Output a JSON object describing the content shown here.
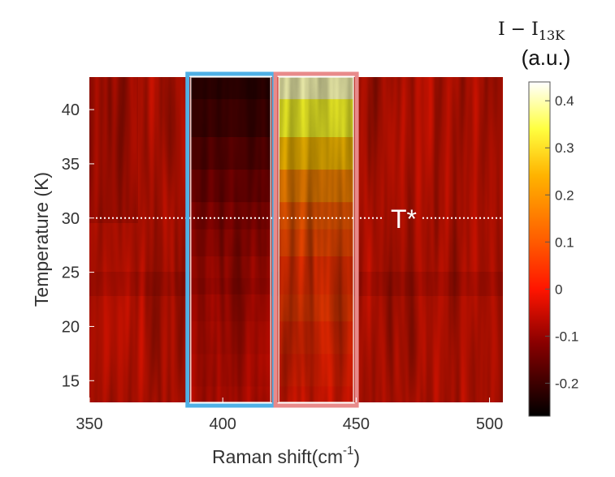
{
  "chart_data": {
    "type": "heatmap",
    "title": "",
    "xlabel": "Raman shift(cm",
    "xlabel_superscript": "-1",
    "xlabel_suffix": ")",
    "ylabel": "Temperature (K)",
    "xlim": [
      350,
      505
    ],
    "ylim": [
      13,
      43
    ],
    "x_ticks": [
      350,
      400,
      450,
      500
    ],
    "y_ticks": [
      15,
      20,
      25,
      30,
      35,
      40
    ],
    "colorbar": {
      "title_main": "I − I",
      "title_sub": "13K",
      "title_units": "(a.u.)",
      "range": [
        -0.27,
        0.44
      ],
      "ticks": [
        -0.2,
        -0.1,
        0,
        0.1,
        0.2,
        0.3,
        0.4
      ],
      "tick_labels": [
        "-0.2",
        "-0.1",
        "0",
        "0.1",
        "0.2",
        "0.3",
        "0.4"
      ],
      "colormap": "hot",
      "stops": [
        "#000000",
        "#8b0000",
        "#ff1500",
        "#ff8c00",
        "#ffff00",
        "#ffffff"
      ]
    },
    "temperature_rows": [
      13,
      16,
      19,
      22,
      24,
      25,
      28,
      30,
      33,
      36,
      39,
      43
    ],
    "regions": [
      {
        "name": "low band",
        "x_range": [
          388,
          418
        ],
        "behavior": "decreases below zero with temperature above ~27 K",
        "values_by_row": [
          -0.03,
          -0.04,
          -0.05,
          -0.06,
          -0.08,
          -0.07,
          -0.09,
          -0.11,
          -0.14,
          -0.17,
          -0.2,
          -0.22
        ]
      },
      {
        "name": "high band",
        "x_range": [
          421,
          449
        ],
        "behavior": "increases above zero with temperature above ~27 K",
        "values_by_row": [
          0.02,
          0.03,
          0.04,
          0.06,
          0.05,
          0.05,
          0.08,
          0.1,
          0.15,
          0.22,
          0.32,
          0.4
        ]
      },
      {
        "name": "background",
        "x_range": [
          350,
          505
        ],
        "value": 0.0
      }
    ],
    "highlight_boxes": [
      {
        "x_range": [
          388,
          418
        ],
        "color": "#4fb0e6"
      },
      {
        "x_range": [
          421,
          449
        ],
        "color": "#e88a8a"
      }
    ],
    "annotations": [
      {
        "text": "T*",
        "y": 30,
        "line": "dotted horizontal",
        "color": "#ffffff"
      }
    ]
  }
}
